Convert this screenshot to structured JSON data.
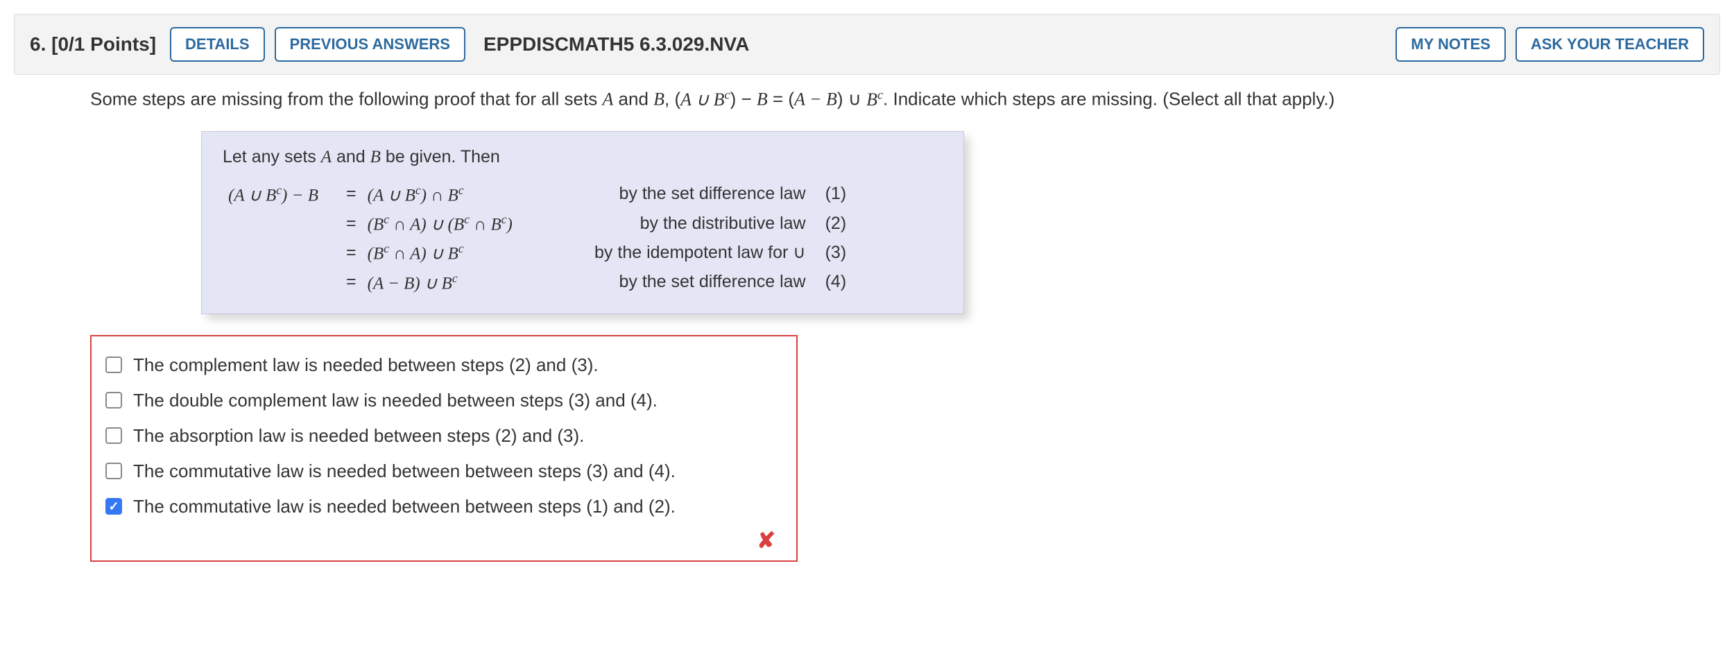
{
  "header": {
    "number_points": "6.  [0/1 Points]",
    "details_label": "DETAILS",
    "previous_label": "PREVIOUS ANSWERS",
    "code": "EPPDISCMATH5 6.3.029.NVA",
    "notes_label": "MY NOTES",
    "ask_label": "ASK YOUR TEACHER"
  },
  "prompt": {
    "pre": "Some steps are missing from the following proof that for all sets ",
    "A": "A",
    "and": " and ",
    "B": "B",
    "mid": ", (",
    "expr1": "A ∪ Bᶜ",
    "mid2": ") − ",
    "Bv": "B",
    "eq": " = (",
    "expr2": "A − B",
    "mid3": ") ∪ ",
    "Bc": "Bᶜ",
    "post": ". Indicate which steps are missing. (Select all that apply.)"
  },
  "proof": {
    "intro_pre": "Let any sets ",
    "intro_A": "A",
    "intro_and": " and ",
    "intro_B": "B",
    "intro_post": " be given. Then",
    "rows": [
      {
        "lhs": "(A ∪ Bᶜ) − B",
        "eq": "=",
        "rhs": "(A ∪ Bᶜ) ∩ Bᶜ",
        "reason": "by the set difference law",
        "tag": "(1)"
      },
      {
        "lhs": "",
        "eq": "=",
        "rhs": "(Bᶜ ∩ A) ∪ (Bᶜ ∩ Bᶜ)",
        "reason": "by the distributive law",
        "tag": "(2)"
      },
      {
        "lhs": "",
        "eq": "=",
        "rhs": "(Bᶜ ∩ A) ∪ Bᶜ",
        "reason": "by the idempotent law for ∪",
        "tag": "(3)"
      },
      {
        "lhs": "",
        "eq": "=",
        "rhs": "(A − B) ∪ Bᶜ",
        "reason": "by the set difference law",
        "tag": "(4)"
      }
    ]
  },
  "options": [
    {
      "checked": false,
      "label": "The complement law is needed between steps (2) and (3)."
    },
    {
      "checked": false,
      "label": "The double complement law is needed between steps (3) and (4)."
    },
    {
      "checked": false,
      "label": "The absorption law is needed between steps (2) and (3)."
    },
    {
      "checked": false,
      "label": "The commutative law is needed between between steps (3) and (4)."
    },
    {
      "checked": true,
      "label": "The commutative law is needed between between steps (1) and (2)."
    }
  ],
  "feedback": {
    "incorrect_mark": "✘"
  },
  "colors": {
    "accent": "#2d6a9f",
    "error": "#d94040",
    "proof_bg": "#e5e6f5",
    "header_bg": "#f3f3f3",
    "checkbox_checked": "#3478f6"
  }
}
